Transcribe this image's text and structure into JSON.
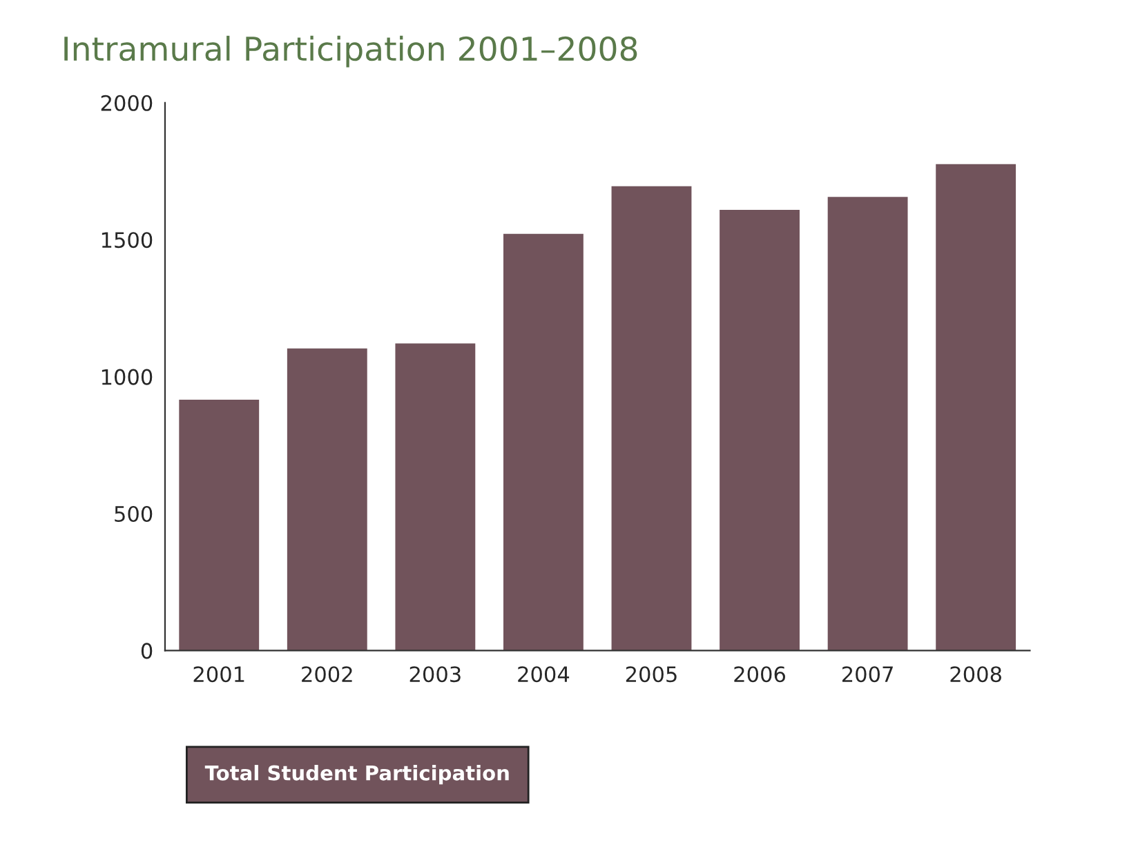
{
  "chart_data": {
    "type": "bar",
    "title": "Intramural Participation 2001–2008",
    "categories": [
      "2001",
      "2002",
      "2003",
      "2004",
      "2005",
      "2006",
      "2007",
      "2008"
    ],
    "series": [
      {
        "name": "Total Student Participation",
        "color": "#71535b",
        "values": [
          916,
          1103,
          1121,
          1521,
          1695,
          1609,
          1656,
          1776
        ]
      }
    ],
    "ylim": [
      0,
      2000
    ],
    "yticks": [
      0,
      500,
      1000,
      1500,
      2000
    ],
    "grid": false,
    "legend": "bottom left"
  }
}
